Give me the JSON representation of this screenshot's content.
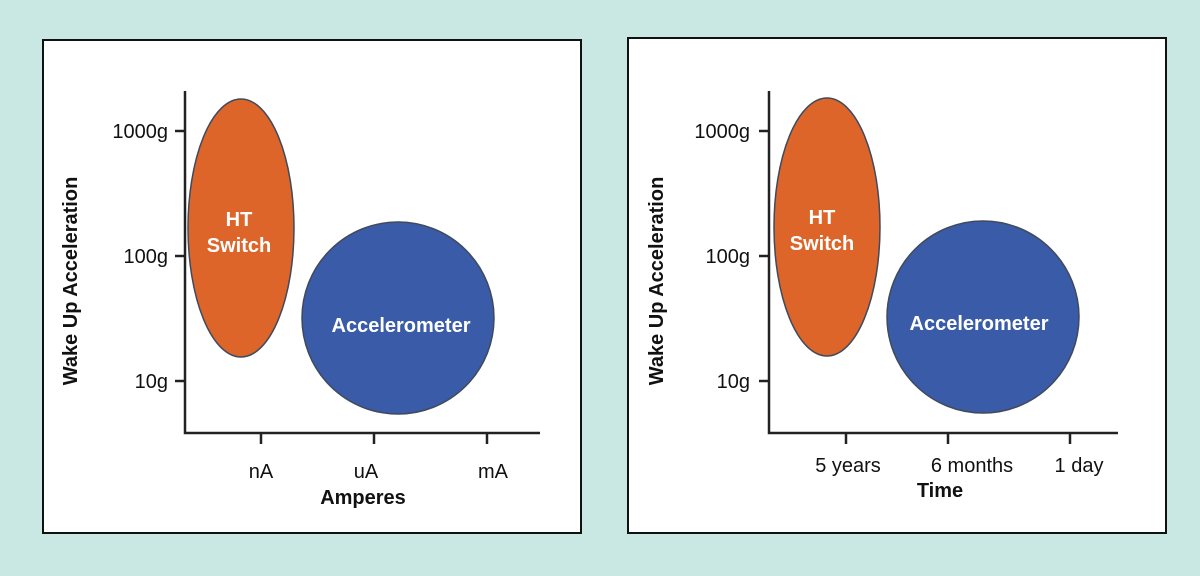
{
  "colors": {
    "background": "#c9e8e4",
    "ht_switch": "#dd6529",
    "accelerometer": "#3a5ba8",
    "outline": "#3f4a5c"
  },
  "left_panel": {
    "y_axis_title": "Wake Up Acceleration",
    "y_ticks": [
      "1000g",
      "100g",
      "10g"
    ],
    "x_axis_title": "Amperes",
    "x_ticks": [
      "nA",
      "uA",
      "mA"
    ],
    "ht_switch_line1": "HT",
    "ht_switch_line2": "Switch",
    "accelerometer": "Accelerometer"
  },
  "right_panel": {
    "y_axis_title": "Wake Up Acceleration",
    "y_ticks": [
      "1000g",
      "100g",
      "10g"
    ],
    "x_axis_title": "Time",
    "x_ticks": [
      "5 years",
      "6 months",
      "1 day"
    ],
    "ht_switch_line1": "HT",
    "ht_switch_line2": "Switch",
    "accelerometer": "Accelerometer"
  }
}
